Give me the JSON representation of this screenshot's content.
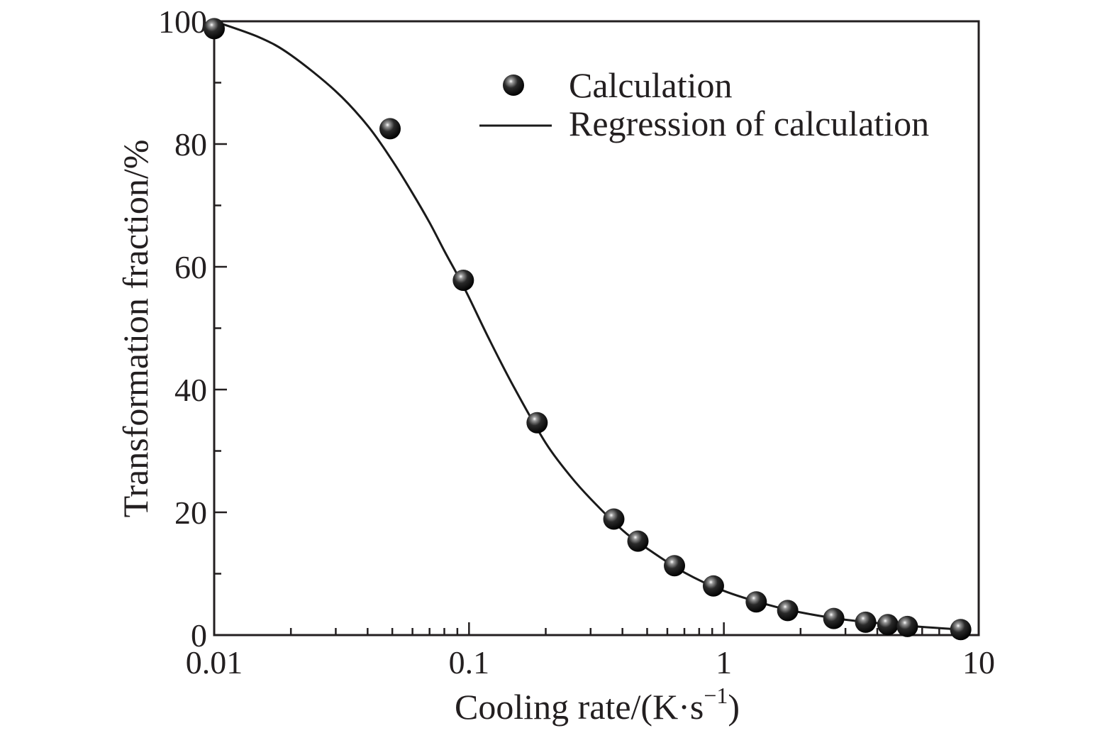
{
  "chart_data": {
    "type": "scatter",
    "title": "",
    "xlabel": "Cooling rate/(K·s",
    "xlabel_sup": "−1",
    "xlabel_tail": ")",
    "ylabel": "Transformation fraction/%",
    "xscale": "log",
    "xlim": [
      0.01,
      10
    ],
    "ylim": [
      0,
      100
    ],
    "x_ticks": [
      {
        "value": 0.01,
        "label": "0.01"
      },
      {
        "value": 0.1,
        "label": "0.1"
      },
      {
        "value": 1,
        "label": "1"
      },
      {
        "value": 10,
        "label": "10"
      }
    ],
    "y_ticks": [
      {
        "value": 0,
        "label": "0"
      },
      {
        "value": 20,
        "label": "20"
      },
      {
        "value": 40,
        "label": "40"
      },
      {
        "value": 60,
        "label": "60"
      },
      {
        "value": 80,
        "label": "80"
      },
      {
        "value": 100,
        "label": "100"
      }
    ],
    "grid": false,
    "legend_position": "top-right",
    "series": [
      {
        "name": "Calculation",
        "kind": "scatter",
        "marker": "sphere",
        "color": "#1a1a1a",
        "points": [
          [
            0.01,
            98.8
          ],
          [
            0.049,
            82.5
          ],
          [
            0.095,
            57.8
          ],
          [
            0.185,
            34.6
          ],
          [
            0.37,
            18.9
          ],
          [
            0.46,
            15.3
          ],
          [
            0.64,
            11.3
          ],
          [
            0.91,
            8.0
          ],
          [
            1.34,
            5.4
          ],
          [
            1.78,
            4.0
          ],
          [
            2.7,
            2.7
          ],
          [
            3.6,
            2.1
          ],
          [
            4.4,
            1.7
          ],
          [
            5.25,
            1.4
          ],
          [
            8.5,
            0.9
          ]
        ]
      },
      {
        "name": "Regression of calculation",
        "kind": "line",
        "color": "#1a1a1a",
        "points": [
          [
            0.01,
            100
          ],
          [
            0.015,
            97.4
          ],
          [
            0.02,
            94.5
          ],
          [
            0.03,
            88.6
          ],
          [
            0.04,
            83.0
          ],
          [
            0.05,
            77.3
          ],
          [
            0.06,
            72.0
          ],
          [
            0.07,
            67.2
          ],
          [
            0.08,
            62.6
          ],
          [
            0.09,
            58.7
          ],
          [
            0.1,
            55.0
          ],
          [
            0.12,
            48.2
          ],
          [
            0.15,
            40.4
          ],
          [
            0.2,
            31.3
          ],
          [
            0.25,
            25.9
          ],
          [
            0.3,
            22.2
          ],
          [
            0.4,
            17.1
          ],
          [
            0.5,
            14.1
          ],
          [
            0.7,
            10.2
          ],
          [
            1,
            7.2
          ],
          [
            1.5,
            4.9
          ],
          [
            2,
            3.7
          ],
          [
            3,
            2.5
          ],
          [
            5,
            1.6
          ],
          [
            8.5,
            0.9
          ]
        ]
      }
    ]
  }
}
